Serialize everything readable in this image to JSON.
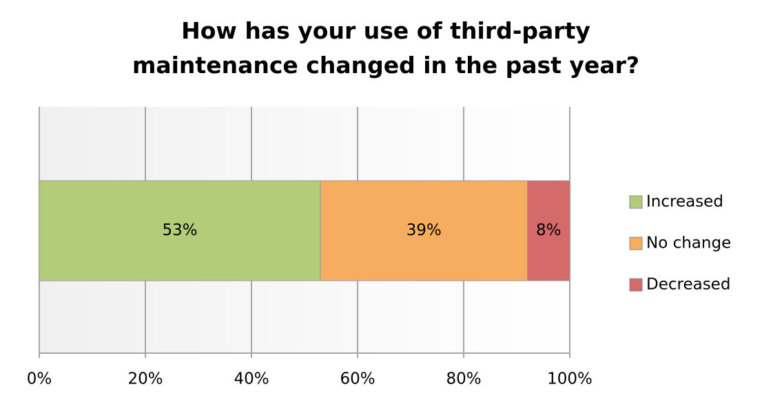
{
  "chart_data": {
    "type": "stacked-bar-horizontal",
    "title": "How has your use of third-party maintenance changed in the past year?",
    "series": [
      {
        "name": "Increased",
        "color": "#b3cc7a",
        "values": [
          53
        ],
        "value_labels": [
          "53%"
        ]
      },
      {
        "name": "No change",
        "color": "#f7ad5f",
        "values": [
          39
        ],
        "value_labels": [
          "39%"
        ]
      },
      {
        "name": "Decreased",
        "color": "#d46a6a",
        "values": [
          8
        ],
        "value_labels": [
          "8%"
        ]
      }
    ],
    "xlim": [
      0,
      100
    ],
    "xticks": [
      {
        "value": 0,
        "label": "0%"
      },
      {
        "value": 20,
        "label": "20%"
      },
      {
        "value": 40,
        "label": "40%"
      },
      {
        "value": 60,
        "label": "60%"
      },
      {
        "value": 80,
        "label": "80%"
      },
      {
        "value": 100,
        "label": "100%"
      }
    ],
    "grid": true,
    "legend": "right"
  }
}
